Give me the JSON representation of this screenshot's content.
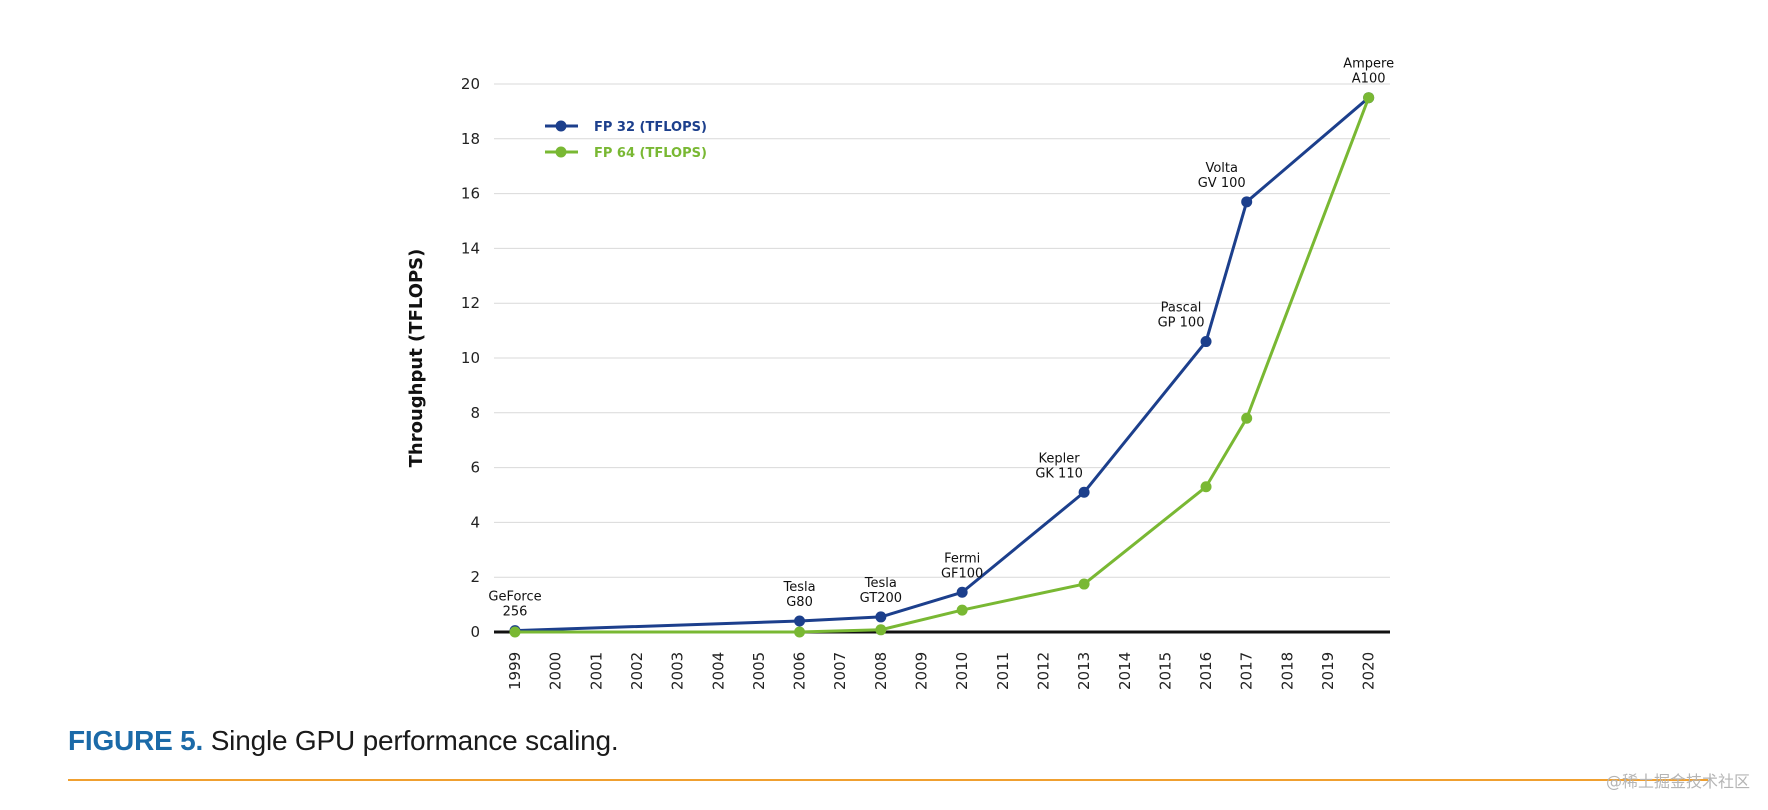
{
  "chart_data": {
    "type": "line",
    "title": "",
    "xlabel": "",
    "ylabel": "Throughput (TFLOPS)",
    "ylim": [
      0,
      20
    ],
    "yticks": [
      0,
      2,
      4,
      6,
      8,
      10,
      12,
      14,
      16,
      18,
      20
    ],
    "categories": [
      "1999",
      "2000",
      "2001",
      "2002",
      "2003",
      "2004",
      "2005",
      "2006",
      "2007",
      "2008",
      "2009",
      "2010",
      "2011",
      "2012",
      "2013",
      "2014",
      "2015",
      "2016",
      "2017",
      "2018",
      "2019",
      "2020"
    ],
    "grid": true,
    "legend_position": "top-left",
    "series": [
      {
        "name": "FP 32 (TFLOPS)",
        "color": "#1c3f8c",
        "points": [
          {
            "x": "1999",
            "y": 0.05
          },
          {
            "x": "2006",
            "y": 0.4
          },
          {
            "x": "2008",
            "y": 0.55
          },
          {
            "x": "2010",
            "y": 1.45
          },
          {
            "x": "2013",
            "y": 5.1
          },
          {
            "x": "2016",
            "y": 10.6
          },
          {
            "x": "2017",
            "y": 15.7
          },
          {
            "x": "2020",
            "y": 19.5
          }
        ]
      },
      {
        "name": "FP 64 (TFLOPS)",
        "color": "#79b833",
        "points": [
          {
            "x": "1999",
            "y": 0.0
          },
          {
            "x": "2006",
            "y": 0.0
          },
          {
            "x": "2008",
            "y": 0.08
          },
          {
            "x": "2010",
            "y": 0.8
          },
          {
            "x": "2013",
            "y": 1.75
          },
          {
            "x": "2016",
            "y": 5.3
          },
          {
            "x": "2017",
            "y": 7.8
          },
          {
            "x": "2020",
            "y": 19.5
          }
        ]
      }
    ],
    "annotations": [
      {
        "x": "1999",
        "y": 0.05,
        "lines": [
          "GeForce",
          "256"
        ]
      },
      {
        "x": "2006",
        "y": 0.4,
        "lines": [
          "Tesla",
          "G80"
        ]
      },
      {
        "x": "2008",
        "y": 0.55,
        "lines": [
          "Tesla",
          "GT200"
        ]
      },
      {
        "x": "2010",
        "y": 1.45,
        "lines": [
          "Fermi",
          "GF100"
        ]
      },
      {
        "x": "2013",
        "y": 5.1,
        "lines": [
          "Kepler",
          "GK 110"
        ]
      },
      {
        "x": "2016",
        "y": 10.6,
        "lines": [
          "Pascal",
          "GP 100"
        ]
      },
      {
        "x": "2017",
        "y": 15.7,
        "lines": [
          "Volta",
          "GV 100"
        ]
      },
      {
        "x": "2020",
        "y": 19.5,
        "lines": [
          "Ampere",
          "A100"
        ]
      }
    ]
  },
  "caption": {
    "figure_label": "FIGURE 5.",
    "text": " Single GPU performance scaling."
  },
  "colors": {
    "caption_label": "#1b6aa8",
    "rule": "#f0a030"
  },
  "watermark": "@稀土掘金技术社区"
}
